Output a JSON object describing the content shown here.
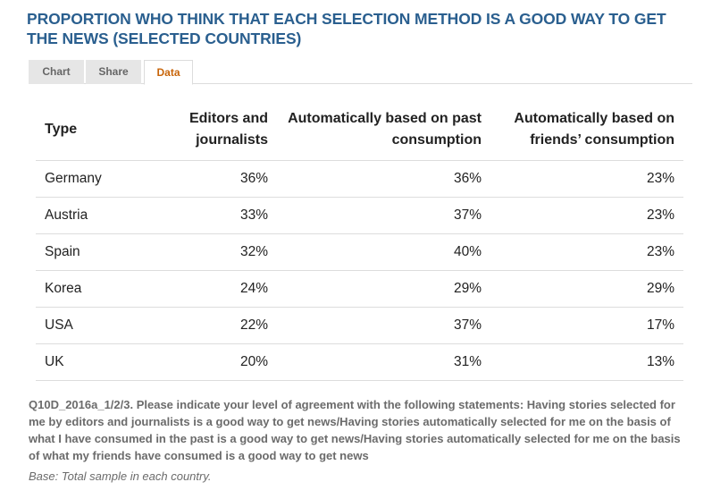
{
  "title": "PROPORTION WHO THINK THAT EACH SELECTION METHOD IS A GOOD WAY TO GET THE NEWS (SELECTED COUNTRIES)",
  "tabs": [
    {
      "label": "Chart"
    },
    {
      "label": "Share"
    },
    {
      "label": "Data"
    }
  ],
  "active_tab": "Data",
  "colors": {
    "title": "#2a5f8f",
    "active_tab": "#c8650a"
  },
  "table": {
    "headers": [
      "Type",
      "Editors and journalists",
      "Automatically based on past consumption",
      "Automatically based on friends’ consumption"
    ],
    "rows": [
      [
        "Germany",
        "36%",
        "36%",
        "23%"
      ],
      [
        "Austria",
        "33%",
        "37%",
        "23%"
      ],
      [
        "Spain",
        "32%",
        "40%",
        "23%"
      ],
      [
        "Korea",
        "24%",
        "29%",
        "29%"
      ],
      [
        "USA",
        "22%",
        "37%",
        "17%"
      ],
      [
        "UK",
        "20%",
        "31%",
        "13%"
      ]
    ]
  },
  "footnote": "Q10D_2016a_1/2/3. Please indicate your level of agreement with the following statements: Having stories selected for me by editors and journalists is a good way to get news/Having stories automatically selected for me on the basis of what I have consumed in the past is a good way to get news/Having stories automatically selected for me on the basis of what my friends have consumed is a good way to get news",
  "base": "Base: Total sample in each country."
}
